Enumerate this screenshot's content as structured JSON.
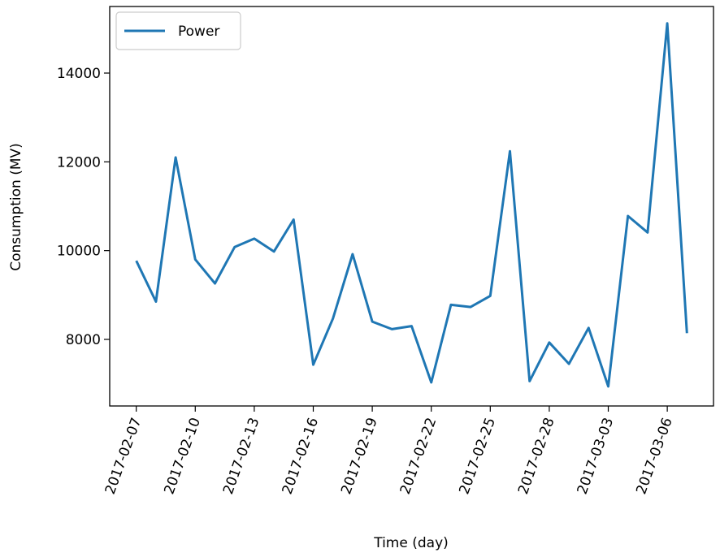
{
  "chart_data": {
    "type": "line",
    "xlabel": "Time (day)",
    "ylabel": "Consumption (MV)",
    "x_ticks": [
      "2017-02-07",
      "2017-02-10",
      "2017-02-13",
      "2017-02-16",
      "2017-02-19",
      "2017-02-22",
      "2017-02-25",
      "2017-02-28",
      "2017-03-03",
      "2017-03-06"
    ],
    "y_ticks": [
      8000,
      10000,
      12000,
      14000
    ],
    "xlim": [
      "2017-02-05 15:36",
      "2017-03-08 08:24"
    ],
    "ylim": [
      6500,
      15500
    ],
    "grid": false,
    "legend_position": "upper-left",
    "series": [
      {
        "name": "Power",
        "color": "#1f77b4",
        "x": [
          "2017-02-07",
          "2017-02-08",
          "2017-02-09",
          "2017-02-10",
          "2017-02-11",
          "2017-02-12",
          "2017-02-13",
          "2017-02-14",
          "2017-02-15",
          "2017-02-16",
          "2017-02-17",
          "2017-02-18",
          "2017-02-19",
          "2017-02-20",
          "2017-02-21",
          "2017-02-22",
          "2017-02-23",
          "2017-02-24",
          "2017-02-25",
          "2017-02-26",
          "2017-02-27",
          "2017-02-28",
          "2017-03-01",
          "2017-03-02",
          "2017-03-03",
          "2017-03-04",
          "2017-03-05",
          "2017-03-06",
          "2017-03-07"
        ],
        "values": [
          9770,
          8850,
          12100,
          9800,
          9260,
          10080,
          10270,
          9980,
          10700,
          7430,
          8470,
          9920,
          8400,
          8230,
          8300,
          7030,
          8780,
          8730,
          8980,
          12240,
          7060,
          7930,
          7450,
          8260,
          6940,
          10780,
          10410,
          15120,
          8140
        ]
      }
    ]
  }
}
